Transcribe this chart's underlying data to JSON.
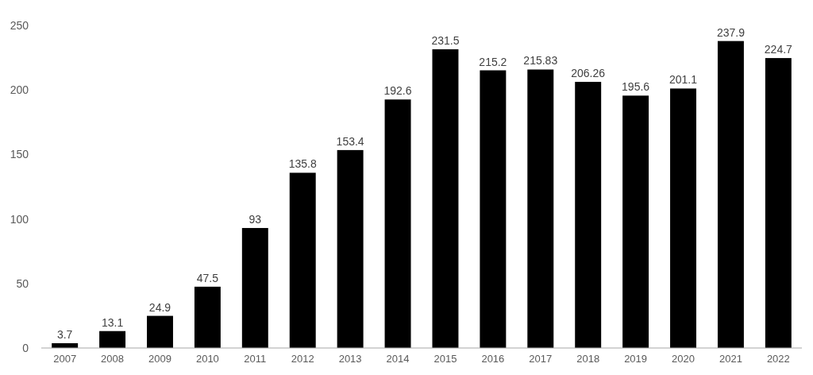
{
  "chart_data": {
    "type": "bar",
    "categories": [
      "2007",
      "2008",
      "2009",
      "2010",
      "2011",
      "2012",
      "2013",
      "2014",
      "2015",
      "2016",
      "2017",
      "2018",
      "2019",
      "2020",
      "2021",
      "2022"
    ],
    "values": [
      3.7,
      13.1,
      24.9,
      47.5,
      93,
      135.8,
      153.4,
      192.6,
      231.5,
      215.2,
      215.83,
      206.26,
      195.6,
      201.1,
      237.9,
      224.7
    ],
    "color": "#000000",
    "ylim": [
      0,
      250
    ],
    "yticks": [
      0,
      50,
      100,
      150,
      200,
      250
    ],
    "grid": false,
    "data_labels": true
  }
}
